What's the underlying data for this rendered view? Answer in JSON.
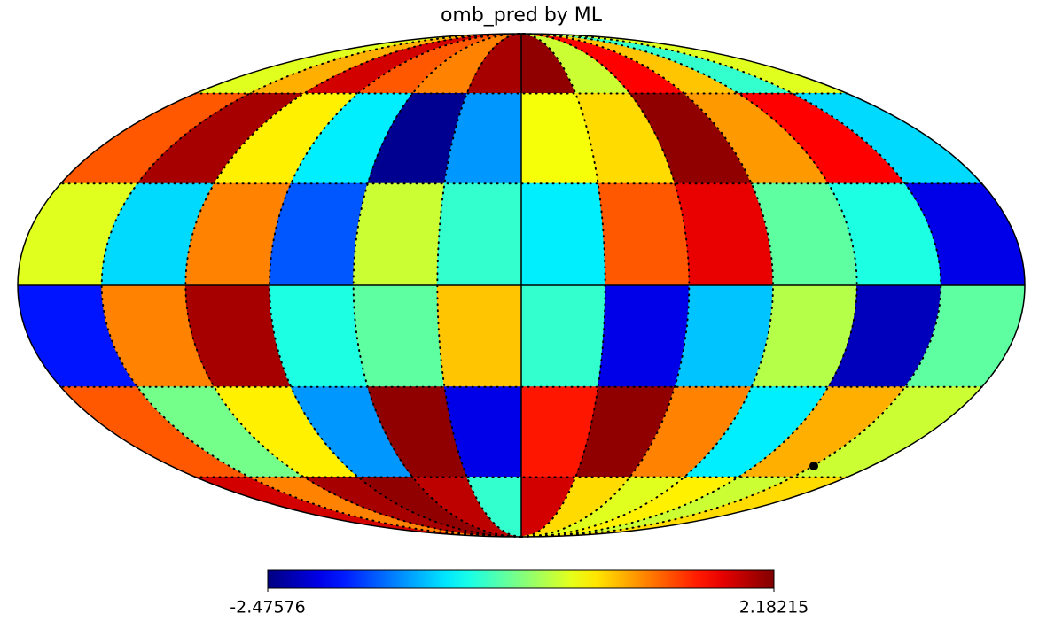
{
  "chart_data": {
    "type": "mollweide",
    "title": "omb_pred by ML",
    "colormap": "jet",
    "grid": true,
    "values": [
      [
        0.3,
        0.8,
        1.8,
        1.2,
        1.0,
        2.0,
        2.1,
        0.2,
        1.6,
        0.7,
        -0.5,
        0.3
      ],
      [
        1.2,
        2.0,
        0.5,
        -0.8,
        -2.4,
        -1.2,
        0.4,
        0.6,
        2.1,
        0.9,
        1.6,
        -0.9
      ],
      [
        0.3,
        -0.9,
        1.0,
        -1.5,
        0.2,
        -0.5,
        -0.8,
        1.2,
        1.7,
        -0.3,
        -0.6,
        -2.0
      ],
      [
        -1.8,
        1.0,
        2.0,
        -0.6,
        -0.3,
        0.7,
        -0.5,
        -2.0,
        -1.0,
        0.1,
        -2.2,
        -0.3
      ],
      [
        1.2,
        -0.2,
        0.5,
        -1.2,
        2.1,
        -2.0,
        1.5,
        2.1,
        1.0,
        -0.8,
        0.8,
        0.2
      ],
      [
        1.8,
        1.0,
        2.0,
        2.1,
        1.9,
        -0.5,
        1.8,
        0.6,
        0.3,
        0.5,
        0.2,
        0.6
      ]
    ],
    "zlim": [
      -2.47576,
      2.18215
    ],
    "zticks": [
      -2.47576,
      2.18215
    ]
  }
}
